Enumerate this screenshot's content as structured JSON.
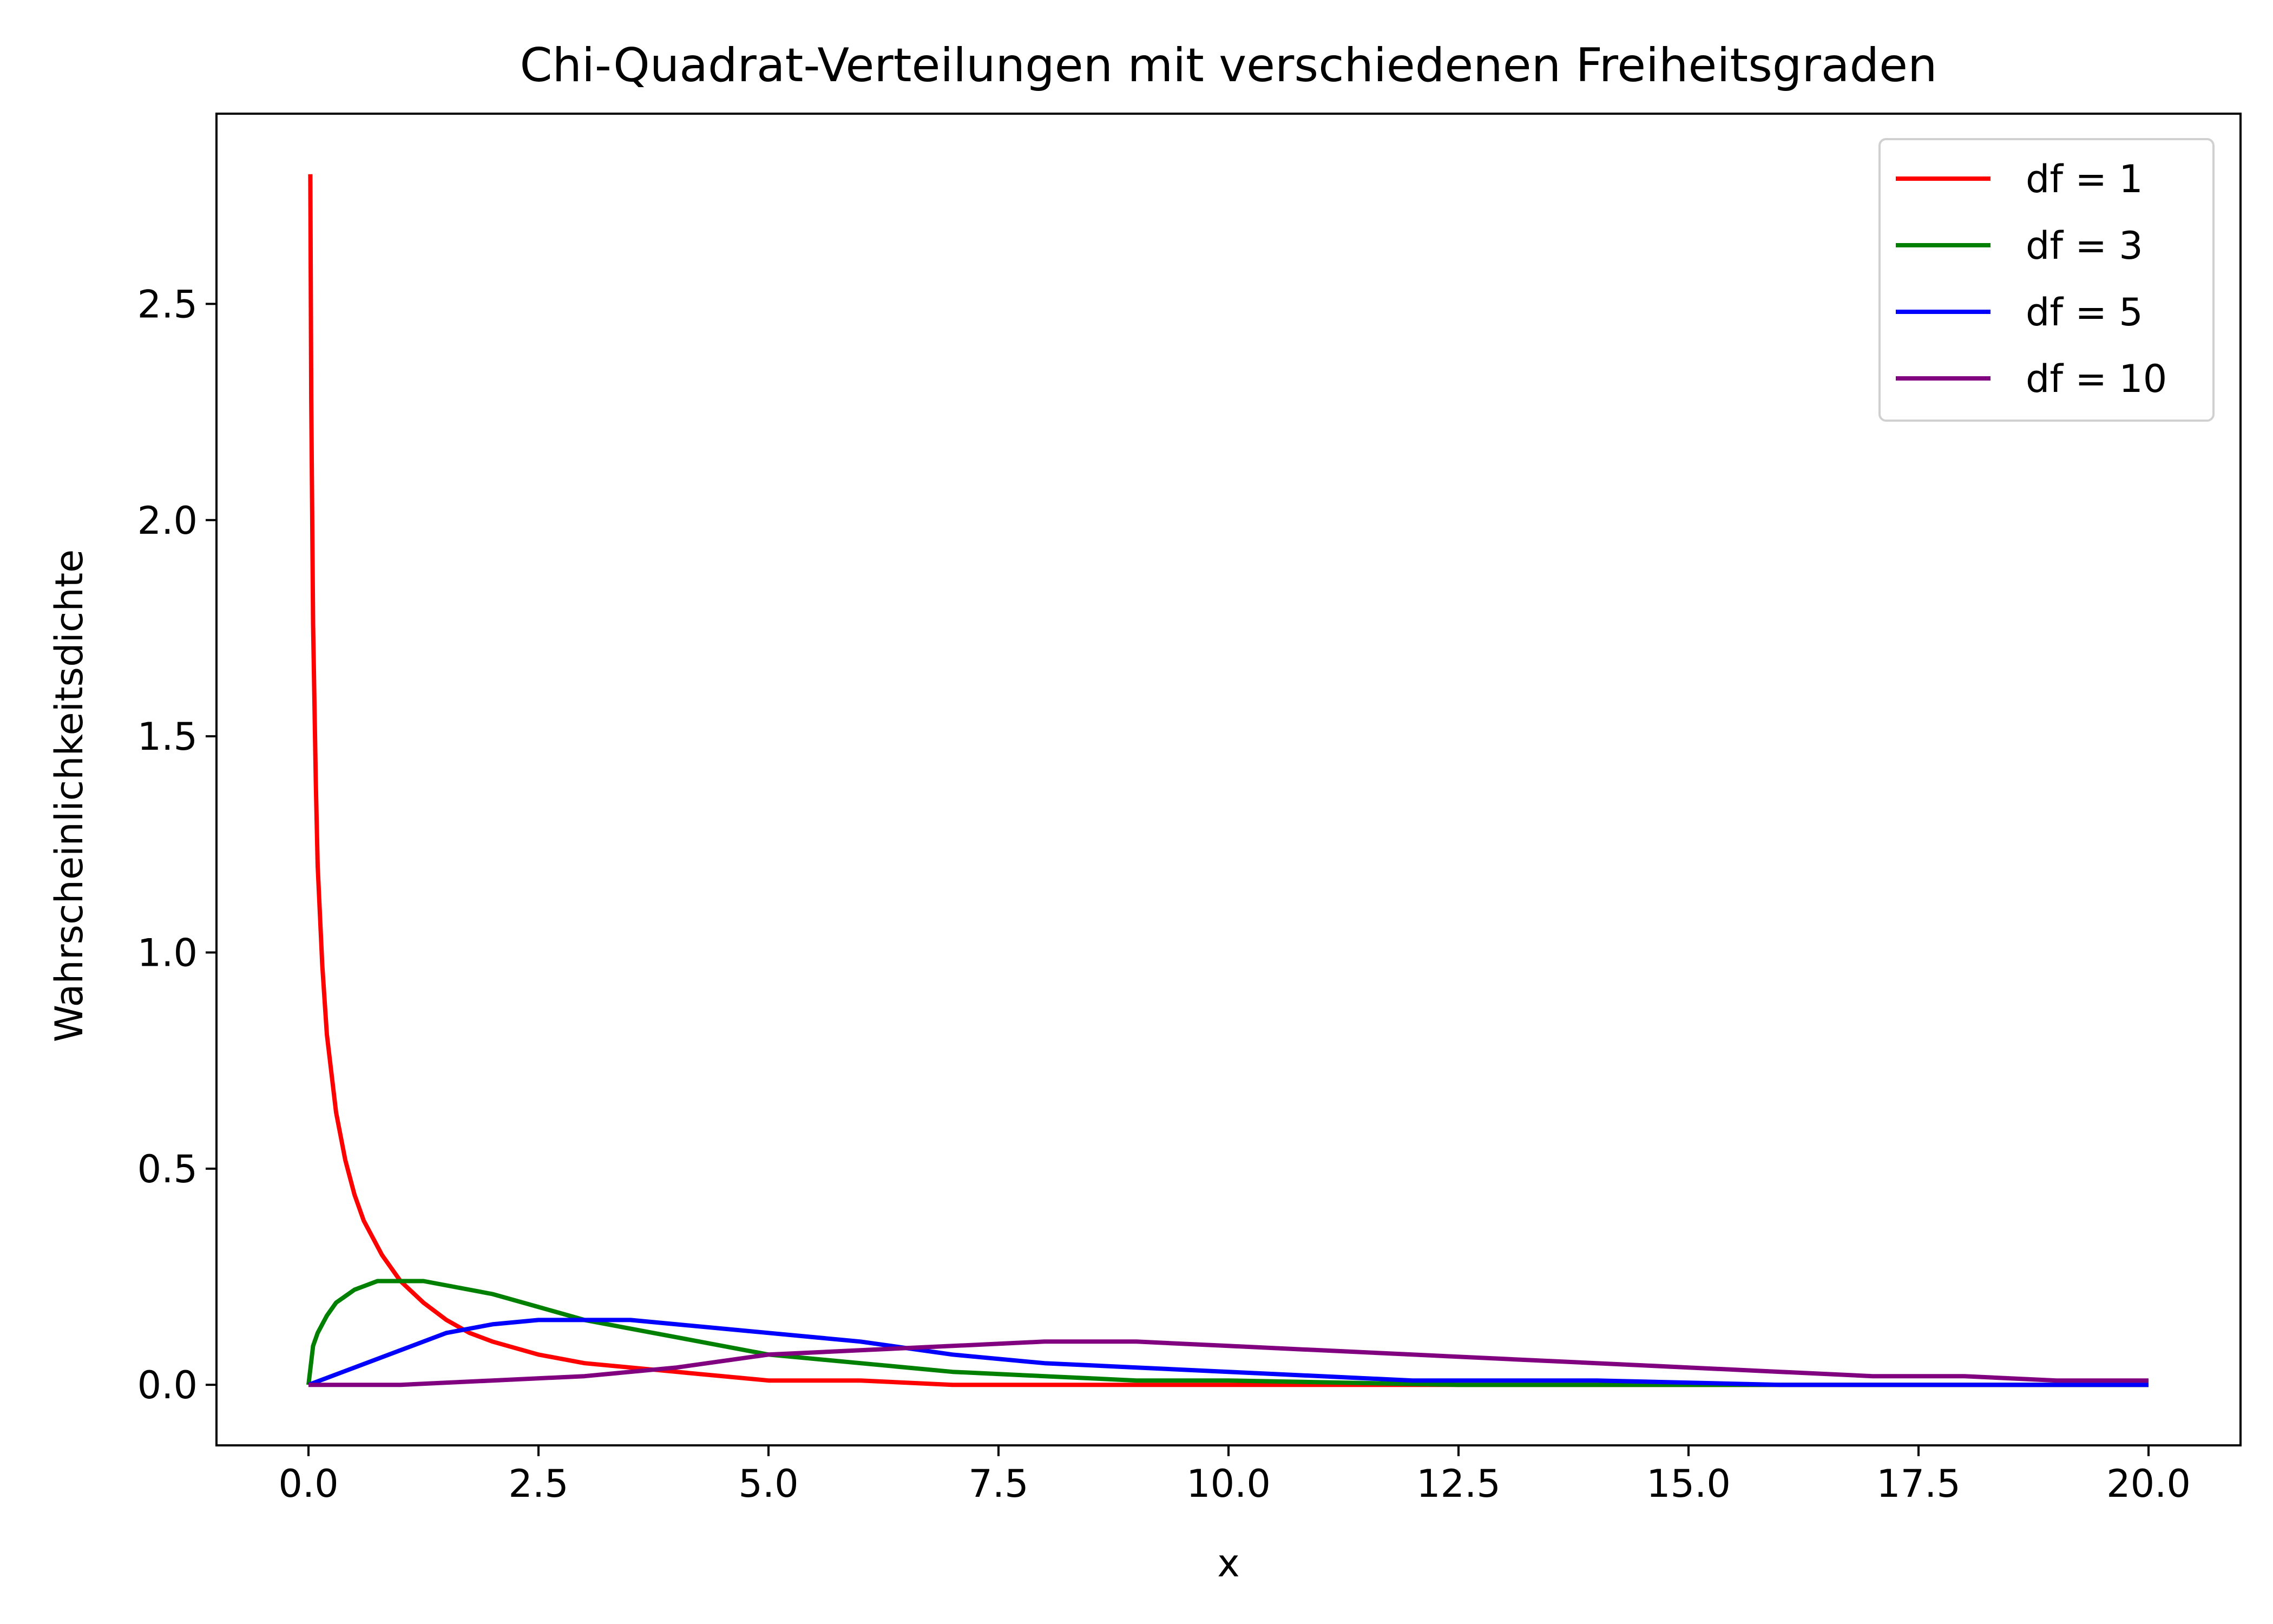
{
  "chart_data": {
    "type": "line",
    "title": "Chi-Quadrat-Verteilungen mit verschiedenen Freiheitsgraden",
    "xlabel": "x",
    "ylabel": "Wahrscheinlichkeitsdichte",
    "xlim": [
      -1.0,
      21.0
    ],
    "ylim": [
      -0.14,
      2.94
    ],
    "grid": false,
    "legend_position": "top-right",
    "xticks": [
      0.0,
      2.5,
      5.0,
      7.5,
      10.0,
      12.5,
      15.0,
      17.5,
      20.0
    ],
    "xtick_labels": [
      "0.0",
      "2.5",
      "5.0",
      "7.5",
      "10.0",
      "12.5",
      "15.0",
      "17.5",
      "20.0"
    ],
    "yticks": [
      0.0,
      0.5,
      1.0,
      1.5,
      2.0,
      2.5
    ],
    "ytick_labels": [
      "0.0",
      "0.5",
      "1.0",
      "1.5",
      "2.0",
      "2.5"
    ],
    "series": [
      {
        "name": "df = 1",
        "color": "#ff0000",
        "x": [
          0.02,
          0.03,
          0.05,
          0.08,
          0.1,
          0.15,
          0.2,
          0.3,
          0.4,
          0.5,
          0.6,
          0.8,
          1.0,
          1.25,
          1.5,
          1.75,
          2.0,
          2.5,
          3.0,
          3.5,
          4.0,
          5.0,
          6.0,
          7.0,
          8.0,
          10.0,
          12.5,
          15.0,
          17.5,
          20.0
        ],
        "y": [
          2.8,
          2.28,
          1.76,
          1.39,
          1.2,
          0.97,
          0.81,
          0.63,
          0.52,
          0.44,
          0.38,
          0.3,
          0.24,
          0.19,
          0.15,
          0.12,
          0.1,
          0.07,
          0.05,
          0.04,
          0.03,
          0.01,
          0.01,
          0.0,
          0.0,
          0.0,
          0.0,
          0.0,
          0.0,
          0.0
        ]
      },
      {
        "name": "df = 3",
        "color": "#008000",
        "x": [
          0.0,
          0.05,
          0.1,
          0.2,
          0.3,
          0.5,
          0.75,
          1.0,
          1.25,
          1.5,
          2.0,
          2.5,
          3.0,
          3.5,
          4.0,
          5.0,
          6.0,
          7.0,
          8.0,
          9.0,
          10.0,
          12.5,
          15.0,
          17.5,
          20.0
        ],
        "y": [
          0.0,
          0.09,
          0.12,
          0.16,
          0.19,
          0.22,
          0.24,
          0.24,
          0.24,
          0.23,
          0.21,
          0.18,
          0.15,
          0.13,
          0.11,
          0.07,
          0.05,
          0.03,
          0.02,
          0.01,
          0.01,
          0.0,
          0.0,
          0.0,
          0.0
        ]
      },
      {
        "name": "df = 5",
        "color": "#0000ff",
        "x": [
          0.0,
          0.5,
          1.0,
          1.5,
          2.0,
          2.5,
          3.0,
          3.5,
          4.0,
          5.0,
          6.0,
          7.0,
          8.0,
          9.0,
          10.0,
          12.0,
          14.0,
          16.0,
          18.0,
          20.0
        ],
        "y": [
          0.0,
          0.04,
          0.08,
          0.12,
          0.14,
          0.15,
          0.15,
          0.15,
          0.14,
          0.12,
          0.1,
          0.07,
          0.05,
          0.04,
          0.03,
          0.01,
          0.01,
          0.0,
          0.0,
          0.0
        ]
      },
      {
        "name": "df = 10",
        "color": "#800080",
        "x": [
          0.0,
          1.0,
          2.0,
          3.0,
          4.0,
          5.0,
          6.0,
          7.0,
          8.0,
          9.0,
          10.0,
          11.0,
          12.0,
          13.0,
          14.0,
          15.0,
          16.0,
          17.0,
          18.0,
          19.0,
          20.0
        ],
        "y": [
          0.0,
          0.0,
          0.01,
          0.02,
          0.04,
          0.07,
          0.08,
          0.09,
          0.1,
          0.1,
          0.09,
          0.08,
          0.07,
          0.06,
          0.05,
          0.04,
          0.03,
          0.02,
          0.02,
          0.01,
          0.01
        ]
      }
    ]
  }
}
